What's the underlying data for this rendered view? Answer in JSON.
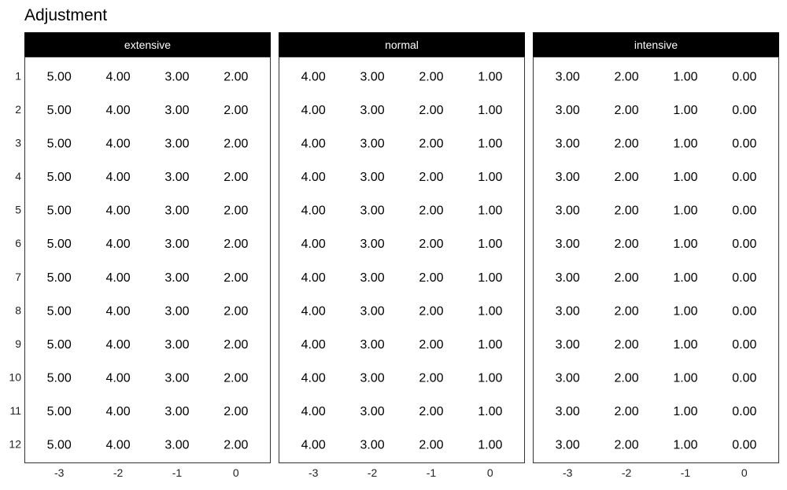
{
  "chart_data": {
    "type": "table",
    "title": "Adjustment",
    "xlabel": "",
    "ylabel": "",
    "x_ticks": [
      -3,
      -2,
      -1,
      0
    ],
    "y_ticks": [
      1,
      2,
      3,
      4,
      5,
      6,
      7,
      8,
      9,
      10,
      11,
      12
    ],
    "xlim": [
      -3.59,
      0.59
    ],
    "ylim": [
      0.43,
      12.57
    ],
    "y_reversed": true,
    "grid": false,
    "facets": [
      {
        "name": "extensive",
        "values": [
          [
            5.0,
            4.0,
            3.0,
            2.0
          ],
          [
            5.0,
            4.0,
            3.0,
            2.0
          ],
          [
            5.0,
            4.0,
            3.0,
            2.0
          ],
          [
            5.0,
            4.0,
            3.0,
            2.0
          ],
          [
            5.0,
            4.0,
            3.0,
            2.0
          ],
          [
            5.0,
            4.0,
            3.0,
            2.0
          ],
          [
            5.0,
            4.0,
            3.0,
            2.0
          ],
          [
            5.0,
            4.0,
            3.0,
            2.0
          ],
          [
            5.0,
            4.0,
            3.0,
            2.0
          ],
          [
            5.0,
            4.0,
            3.0,
            2.0
          ],
          [
            5.0,
            4.0,
            3.0,
            2.0
          ],
          [
            5.0,
            4.0,
            3.0,
            2.0
          ]
        ]
      },
      {
        "name": "normal",
        "values": [
          [
            4.0,
            3.0,
            2.0,
            1.0
          ],
          [
            4.0,
            3.0,
            2.0,
            1.0
          ],
          [
            4.0,
            3.0,
            2.0,
            1.0
          ],
          [
            4.0,
            3.0,
            2.0,
            1.0
          ],
          [
            4.0,
            3.0,
            2.0,
            1.0
          ],
          [
            4.0,
            3.0,
            2.0,
            1.0
          ],
          [
            4.0,
            3.0,
            2.0,
            1.0
          ],
          [
            4.0,
            3.0,
            2.0,
            1.0
          ],
          [
            4.0,
            3.0,
            2.0,
            1.0
          ],
          [
            4.0,
            3.0,
            2.0,
            1.0
          ],
          [
            4.0,
            3.0,
            2.0,
            1.0
          ],
          [
            4.0,
            3.0,
            2.0,
            1.0
          ]
        ]
      },
      {
        "name": "intensive",
        "values": [
          [
            3.0,
            2.0,
            1.0,
            0.0
          ],
          [
            3.0,
            2.0,
            1.0,
            0.0
          ],
          [
            3.0,
            2.0,
            1.0,
            0.0
          ],
          [
            3.0,
            2.0,
            1.0,
            0.0
          ],
          [
            3.0,
            2.0,
            1.0,
            0.0
          ],
          [
            3.0,
            2.0,
            1.0,
            0.0
          ],
          [
            3.0,
            2.0,
            1.0,
            0.0
          ],
          [
            3.0,
            2.0,
            1.0,
            0.0
          ],
          [
            3.0,
            2.0,
            1.0,
            0.0
          ],
          [
            3.0,
            2.0,
            1.0,
            0.0
          ],
          [
            3.0,
            2.0,
            1.0,
            0.0
          ],
          [
            3.0,
            2.0,
            1.0,
            0.0
          ]
        ]
      }
    ],
    "colors": {
      "strip_background": "#000000",
      "strip_text": "#ffffff",
      "text": "#000000",
      "panel_border": "#333333"
    }
  }
}
